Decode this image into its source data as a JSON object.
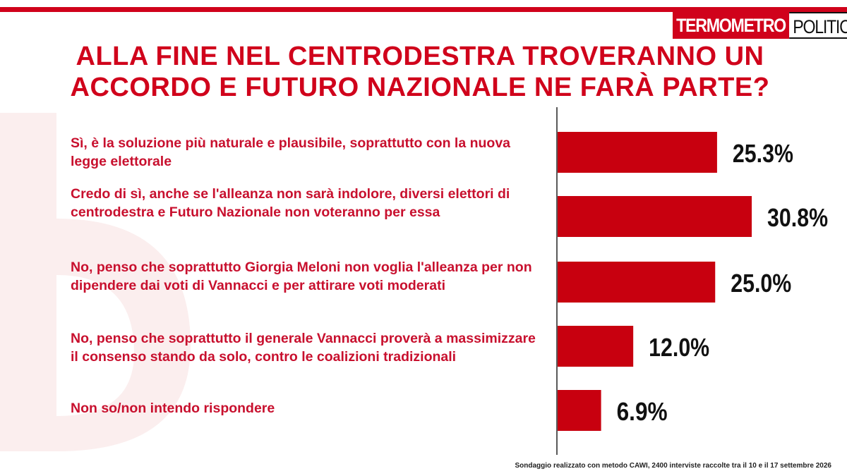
{
  "brand": {
    "logo_part1": "TERMOMETRO",
    "logo_part2": "POLITICO",
    "accent_color": "#d0021b"
  },
  "title": "ALLA FINE NEL CENTRODESTRA TROVERANNO UN ACCORDO E FUTURO NAZIONALE NE FARÀ PARTE?",
  "footnote": "Sondaggio realizzato con metodo CAWI, 2400 interviste raccolte tra il 10 e il 17 settembre  2026",
  "chart_data": {
    "type": "bar",
    "orientation": "horizontal",
    "categories": [
      "Sì, è la soluzione più naturale e plausibile, soprattutto con la nuova legge elettorale",
      "Credo di sì, anche se l'alleanza non sarà  indolore, diversi elettori di centrodestra e Futuro Nazionale non voteranno per essa",
      "No, penso che soprattutto Giorgia Meloni non voglia l'alleanza per non dipendere dai voti di Vannacci e per attirare voti moderati",
      "No, penso che soprattutto il generale Vannacci proverà a massimizzare il consenso stando da solo, contro le coalizioni tradizionali",
      "Non so/non intendo rispondere"
    ],
    "values": [
      25.3,
      30.8,
      25.0,
      12.0,
      6.9
    ],
    "value_labels": [
      "25.3%",
      "30.8%",
      "25.0%",
      "12.0%",
      "6.9%"
    ],
    "unit": "%",
    "bar_color": "#c8000f",
    "grid": false,
    "legend": "none"
  }
}
